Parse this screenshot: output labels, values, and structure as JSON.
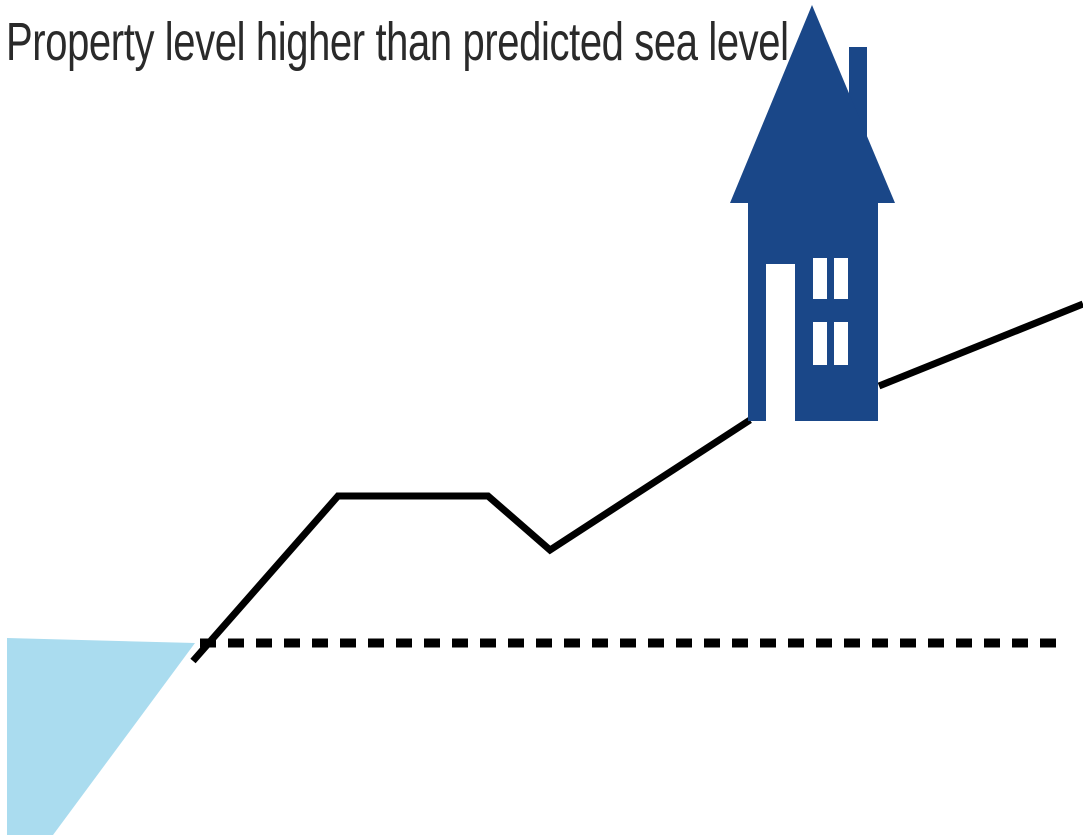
{
  "title": "Property level higher than predicted sea level",
  "colors": {
    "house": "#1a4788",
    "water": "#aadcef",
    "ground_line": "#000000",
    "sea_level_line": "#000000",
    "title_text": "#2a2a2a",
    "background": "#ffffff"
  },
  "icons": {
    "house": "house-icon",
    "water": "sea-water",
    "sea_level": "dashed-predicted-sea-level-line",
    "terrain": "ground-profile-line"
  }
}
